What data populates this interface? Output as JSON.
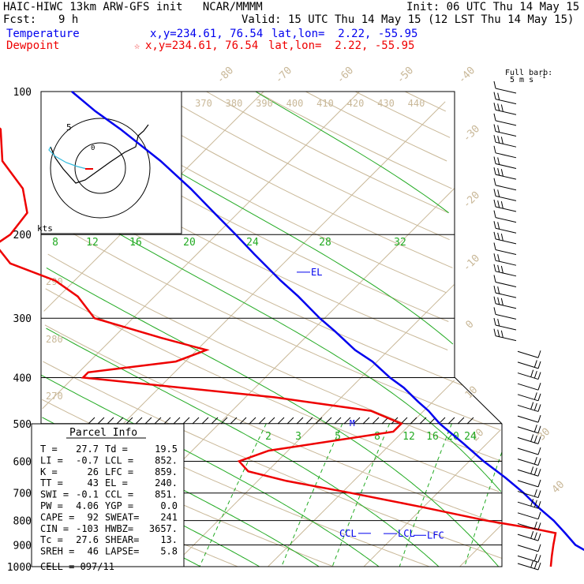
{
  "header": {
    "title": "HAIC-HIWC 13km ARW-GFS init   NCAR/MMMM",
    "init": "Init: 06 UTC Thu 14 May 15",
    "fcst_label": "Fcst:",
    "fcst_value": "9 h",
    "valid": "Valid: 15 UTC Thu 14 May 15 (12 LST Thu 14 May 15)"
  },
  "legend": {
    "temperature": {
      "label": "Temperature",
      "xy": "x,y=234.61, 76.54",
      "latlon": "lat,lon=  2.22, -55.95",
      "color": "#0000ee"
    },
    "dewpoint": {
      "label": "Dewpoint",
      "xy": "x,y=234.61, 76.54",
      "latlon": "lat,lon=  2.22, -55.95",
      "color": "#ee0000"
    }
  },
  "barb_key": {
    "line1": "Full barb:",
    "line2": "5 m s",
    "sup": "-1"
  },
  "hodograph": {
    "unit": "kts"
  },
  "parcel": {
    "title": "Parcel Info",
    "rows": [
      {
        "a": "T  =",
        "av": "27.7",
        "b": "Td =",
        "bv": "19.5"
      },
      {
        "a": "LI =",
        "av": "-0.7",
        "b": "LCL =",
        "bv": "852."
      },
      {
        "a": "K  =",
        "av": "26",
        "b": "LFC =",
        "bv": "859."
      },
      {
        "a": "TT =",
        "av": "43",
        "b": "EL  =",
        "bv": "240."
      },
      {
        "a": "SWI =",
        "av": "-0.1",
        "b": "CCL =",
        "bv": "851."
      },
      {
        "a": "PW =",
        "av": "4.06",
        "b": "YGP =",
        "bv": "0.0"
      },
      {
        "a": "CAPE =",
        "av": "92",
        "b": "SWEAT=",
        "bv": "241"
      },
      {
        "a": "CIN =",
        "av": "-103",
        "b": "HWBZ=",
        "bv": "3657."
      },
      {
        "a": "Tc =",
        "av": "27.6",
        "b": "SHEAR=",
        "bv": "13."
      },
      {
        "a": "SREH =",
        "av": "46",
        "b": "LAPSE=",
        "bv": "5.8"
      }
    ],
    "cell": "CELL = 097/11"
  },
  "chart_data": {
    "type": "line",
    "axes": {
      "y": "pressure (hPa), log scale",
      "x": "temperature (C), skewed 45 degrees"
    },
    "pressure_ticks": [
      100,
      200,
      300,
      400,
      500,
      600,
      700,
      800,
      900,
      1000
    ],
    "pressure_labels": [
      "100",
      "200",
      "300",
      "400",
      "500",
      "600",
      "700",
      "800",
      "900",
      "1000"
    ],
    "isotherms_upper": [
      "-80",
      "-70",
      "-60",
      "-50",
      "-40"
    ],
    "isotherms_right": [
      "-30",
      "-20",
      "-10",
      "0",
      "10",
      "20",
      "30",
      "40"
    ],
    "theta_labels_top": [
      "370",
      "380",
      "390",
      "400",
      "410",
      "420",
      "430",
      "440"
    ],
    "theta_labels_left": [
      "290",
      "280",
      "270"
    ],
    "mixing_ratio_upper": [
      "8",
      "12",
      "16",
      "20",
      "24",
      "28",
      "32"
    ],
    "mixing_ratio_lower": [
      "2",
      "3",
      "5",
      "8",
      "12",
      "16",
      "20",
      "24"
    ],
    "series": [
      {
        "name": "Temperature",
        "color": "#0000ee",
        "points": [
          [
            1000,
            28
          ],
          [
            950,
            23
          ],
          [
            900,
            19.8
          ],
          [
            850,
            17.5
          ],
          [
            800,
            15
          ],
          [
            750,
            12
          ],
          [
            700,
            9
          ],
          [
            650,
            5.5
          ],
          [
            600,
            1.5
          ],
          [
            550,
            -2.5
          ],
          [
            500,
            -7
          ],
          [
            470,
            -9.5
          ],
          [
            450,
            -11.5
          ],
          [
            420,
            -14.5
          ],
          [
            400,
            -17
          ],
          [
            370,
            -20.5
          ],
          [
            350,
            -23.5
          ],
          [
            320,
            -27.5
          ],
          [
            300,
            -30.5
          ],
          [
            270,
            -35
          ],
          [
            250,
            -38.5
          ],
          [
            220,
            -44
          ],
          [
            200,
            -48
          ],
          [
            180,
            -52.5
          ],
          [
            160,
            -57.5
          ],
          [
            140,
            -63.5
          ],
          [
            120,
            -71
          ],
          [
            110,
            -75.5
          ],
          [
            100,
            -80
          ]
        ]
      },
      {
        "name": "Dewpoint",
        "color": "#ee0000",
        "points": [
          [
            1000,
            19.5
          ],
          [
            950,
            18.5
          ],
          [
            900,
            17.5
          ],
          [
            850,
            16.5
          ],
          [
            830,
            13.5
          ],
          [
            800,
            8
          ],
          [
            750,
            0
          ],
          [
            700,
            -9
          ],
          [
            660,
            -17
          ],
          [
            630,
            -22
          ],
          [
            600,
            -24
          ],
          [
            570,
            -22
          ],
          [
            520,
            -11
          ],
          [
            500,
            -11
          ],
          [
            470,
            -15.5
          ],
          [
            440,
            -27
          ],
          [
            400,
            -49
          ],
          [
            390,
            -49
          ],
          [
            370,
            -41
          ],
          [
            350,
            -39
          ],
          [
            330,
            -45
          ],
          [
            300,
            -54
          ],
          [
            270,
            -58
          ],
          [
            250,
            -62
          ],
          [
            230,
            -68.5
          ],
          [
            210,
            -72
          ],
          [
            200,
            -71.5
          ],
          [
            180,
            -72
          ],
          [
            160,
            -75
          ],
          [
            140,
            -80
          ],
          [
            120,
            -83.5
          ],
          [
            110,
            -87.5
          ],
          [
            100,
            -91
          ]
        ]
      }
    ],
    "levels": [
      {
        "label": "EL",
        "pressure": 240
      },
      {
        "label": "CCL",
        "pressure": 851
      },
      {
        "label": "LCL",
        "pressure": 852
      },
      {
        "label": "LFC",
        "pressure": 859
      }
    ],
    "wind_profile": {
      "type": "barbs",
      "units": "m s-1",
      "levels": 45,
      "pressure_range": [
        100,
        1000
      ]
    }
  }
}
